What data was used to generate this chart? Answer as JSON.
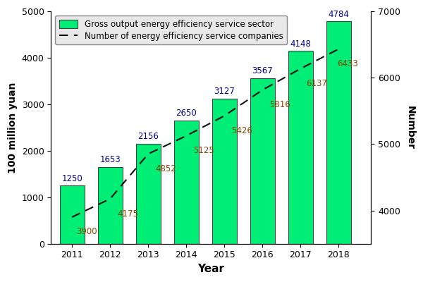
{
  "years": [
    2011,
    2012,
    2013,
    2014,
    2015,
    2016,
    2017,
    2018
  ],
  "bar_values": [
    1250,
    1653,
    2156,
    2650,
    3127,
    3567,
    4148,
    4784
  ],
  "line_values": [
    3900,
    4175,
    4852,
    5125,
    5426,
    5816,
    6137,
    6433
  ],
  "bar_color": "#00EE76",
  "bar_edgecolor": "#444444",
  "line_color": "#111111",
  "bar_label_color": "#00008B",
  "line_label_color": "#8B4500",
  "left_ylim": [
    0,
    5000
  ],
  "right_ylim": [
    3500,
    7000
  ],
  "left_yticks": [
    0,
    1000,
    2000,
    3000,
    4000,
    5000
  ],
  "right_yticks": [
    4000,
    5000,
    6000,
    7000
  ],
  "xlabel": "Year",
  "ylabel_left": "100 million yuan",
  "ylabel_right": "Number",
  "legend_bar": "Gross output energy efficiency service sector",
  "legend_line": "Number of energy efficiency service companies",
  "figsize": [
    6.0,
    4.0
  ],
  "dpi": 100,
  "bar_label_xoffsets": [
    0,
    0,
    0,
    0,
    0,
    0,
    0,
    0
  ],
  "line_label_xoffsets": [
    0.1,
    0.15,
    0.15,
    0.15,
    0.15,
    0.15,
    0.15,
    -0.05
  ],
  "line_label_yoffsets": [
    -0.08,
    -0.08,
    -0.08,
    -0.08,
    -0.08,
    -0.08,
    -0.08,
    -0.08
  ]
}
